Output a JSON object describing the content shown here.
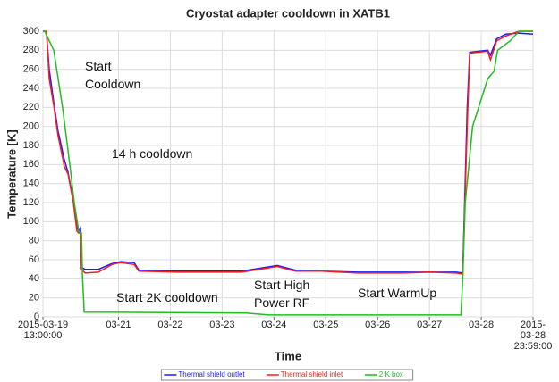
{
  "chart_data": {
    "type": "line",
    "title": "Cryostat adapter cooldown in XATB1",
    "x_label": "Time",
    "y_label": "Temperature [K]",
    "xlim": [
      "2015-03-19 13:00",
      "2015-03-28 23:59"
    ],
    "xticks": [
      {
        "value": "2015-03-19 13:00",
        "label": "2015-03-19\n13:00:00"
      },
      {
        "value": "2015-03-21 00:00",
        "label": "03-21"
      },
      {
        "value": "2015-03-22 00:00",
        "label": "03-22"
      },
      {
        "value": "2015-03-23 00:00",
        "label": "03-23"
      },
      {
        "value": "2015-03-24 00:00",
        "label": "03-24"
      },
      {
        "value": "2015-03-25 00:00",
        "label": "03-25"
      },
      {
        "value": "2015-03-26 00:00",
        "label": "03-26"
      },
      {
        "value": "2015-03-27 00:00",
        "label": "03-27"
      },
      {
        "value": "2015-03-28 00:00",
        "label": "03-28"
      },
      {
        "value": "2015-03-28 23:59",
        "label": "2015-03-28\n23:59:00"
      }
    ],
    "ylim": [
      0,
      300
    ],
    "yticks": [
      0,
      20,
      40,
      60,
      80,
      100,
      120,
      140,
      160,
      180,
      200,
      220,
      240,
      260,
      280,
      300
    ],
    "grid": true,
    "legend": "bottom",
    "annotations": [
      "Start\nCooldown",
      "14 h cooldown",
      "Start 2K cooldown",
      "Start High\nPower RF",
      "Start WarmUp"
    ],
    "series": [
      {
        "name": "Thermal shield outlet",
        "color": "#1a1aff",
        "x": [
          "2015-03-19 13:00",
          "2015-03-19 13:50",
          "2015-03-19 14:40",
          "2015-03-19 15:55",
          "2015-03-19 18:00",
          "2015-03-19 20:00",
          "2015-03-19 22:55",
          "2015-03-20 00:35",
          "2015-03-20 03:05",
          "2015-03-20 04:45",
          "2015-03-20 05:35",
          "2015-03-20 06:25",
          "2015-03-20 06:50",
          "2015-03-20 08:30",
          "2015-03-20 14:40",
          "2015-03-20 20:55",
          "2015-03-21 01:05",
          "2015-03-21 07:15",
          "2015-03-21 09:25",
          "2015-03-22 04:00",
          "2015-03-23 09:00",
          "2015-03-24 01:35",
          "2015-03-24 09:55",
          "2015-03-24 22:20",
          "2015-03-25 14:55",
          "2015-03-26 11:35",
          "2015-03-27 00:05",
          "2015-03-27 12:30",
          "2015-03-27 15:25",
          "2015-03-27 17:30",
          "2015-03-27 18:40",
          "2015-03-28 03:00",
          "2015-03-28 04:15",
          "2015-03-28 07:10",
          "2015-03-28 11:20",
          "2015-03-28 17:30",
          "2015-03-28 23:59"
        ],
        "values": [
          300,
          300,
          298,
          260,
          225,
          195,
          165,
          152,
          122,
          95,
          90,
          93,
          52,
          50,
          50,
          56,
          58,
          57,
          49,
          48,
          48,
          54,
          49,
          48,
          47,
          47,
          47,
          47,
          46,
          220,
          278,
          280,
          275,
          292,
          297,
          298,
          297
        ]
      },
      {
        "name": "Thermal shield inlet",
        "color": "#ff1a1a",
        "x": [
          "2015-03-19 13:00",
          "2015-03-19 13:50",
          "2015-03-19 14:40",
          "2015-03-19 15:55",
          "2015-03-19 18:00",
          "2015-03-19 20:00",
          "2015-03-19 22:55",
          "2015-03-20 00:35",
          "2015-03-20 03:05",
          "2015-03-20 04:45",
          "2015-03-20 05:35",
          "2015-03-20 06:25",
          "2015-03-20 06:50",
          "2015-03-20 08:30",
          "2015-03-20 14:40",
          "2015-03-20 20:55",
          "2015-03-21 01:05",
          "2015-03-21 07:15",
          "2015-03-21 09:25",
          "2015-03-22 04:00",
          "2015-03-23 09:00",
          "2015-03-24 01:35",
          "2015-03-24 09:55",
          "2015-03-24 22:20",
          "2015-03-25 14:55",
          "2015-03-26 11:35",
          "2015-03-27 00:05",
          "2015-03-27 12:30",
          "2015-03-27 15:25",
          "2015-03-27 17:30",
          "2015-03-27 18:40",
          "2015-03-28 03:00",
          "2015-03-28 04:15",
          "2015-03-28 07:10",
          "2015-03-28 11:20",
          "2015-03-28 17:30",
          "2015-03-28 23:59"
        ],
        "values": [
          300,
          300,
          300,
          250,
          222,
          190,
          158,
          150,
          120,
          90,
          88,
          88,
          50,
          46,
          47,
          55,
          57,
          55,
          48,
          47,
          47,
          53,
          48,
          48,
          46,
          46,
          47,
          46,
          45,
          200,
          277,
          279,
          270,
          290,
          295,
          300,
          300
        ]
      },
      {
        "name": "2 K box",
        "color": "#22bb22",
        "x": [
          "2015-03-19 13:00",
          "2015-03-19 13:50",
          "2015-03-19 18:00",
          "2015-03-19 22:05",
          "2015-03-20 01:25",
          "2015-03-20 03:30",
          "2015-03-20 05:35",
          "2015-03-20 06:25",
          "2015-03-20 06:50",
          "2015-03-20 07:15",
          "2015-03-20 08:05",
          "2015-03-23 11:05",
          "2015-03-23 21:30",
          "2015-03-27 14:35",
          "2015-03-27 15:25",
          "2015-03-27 16:35",
          "2015-03-27 20:00",
          "2015-03-28 03:00",
          "2015-03-28 05:55",
          "2015-03-28 07:35",
          "2015-03-28 13:25",
          "2015-03-28 17:30",
          "2015-03-28 23:59"
        ],
        "values": [
          300,
          300,
          280,
          220,
          160,
          120,
          90,
          88,
          88,
          45,
          5,
          4,
          2,
          2,
          40,
          120,
          200,
          250,
          258,
          280,
          290,
          300,
          300
        ]
      }
    ]
  }
}
